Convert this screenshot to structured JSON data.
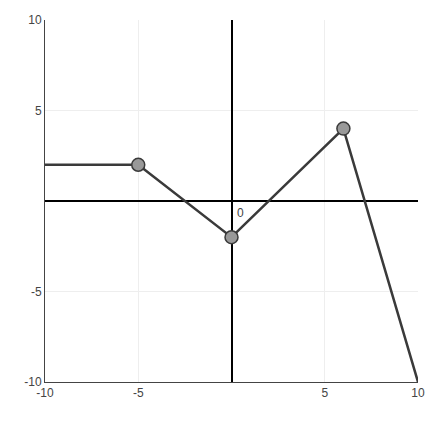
{
  "chart_data": {
    "type": "line",
    "series": [
      {
        "type": "line",
        "x": [
          -10,
          -5,
          0,
          6,
          10
        ],
        "values": [
          2,
          2,
          -2,
          4,
          -10
        ],
        "color": "#3a3a3a"
      },
      {
        "type": "scatter",
        "x": [
          -5,
          0,
          6
        ],
        "values": [
          2,
          -2,
          4
        ],
        "color": "#999999",
        "marker": "circle"
      }
    ],
    "xlim": [
      -10,
      10
    ],
    "ylim": [
      -10,
      10
    ],
    "xticks": [
      -10,
      -5,
      5,
      10
    ],
    "yticks": [
      -10,
      -5,
      5,
      10
    ],
    "annotations": [
      {
        "text": "0",
        "x": 0,
        "y": 0
      }
    ],
    "grid": true
  }
}
